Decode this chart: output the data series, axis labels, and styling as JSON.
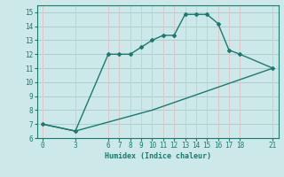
{
  "line1_x": [
    0,
    3,
    6,
    7,
    8,
    9,
    10,
    11,
    12,
    13,
    14,
    15,
    16,
    17,
    18,
    21
  ],
  "line1_y": [
    7.0,
    6.5,
    12.0,
    12.0,
    12.0,
    12.5,
    13.0,
    13.35,
    13.35,
    14.85,
    14.85,
    14.85,
    14.2,
    12.3,
    12.0,
    11.0
  ],
  "line2_x": [
    0,
    3,
    10,
    21
  ],
  "line2_y": [
    7.0,
    6.5,
    8.0,
    11.0
  ],
  "color": "#1a7a6e",
  "bg_color": "#cce8e8",
  "grid_major_color": "#aacece",
  "grid_minor_color": "#ddc8c8",
  "xlabel": "Humidex (Indice chaleur)",
  "xticks": [
    0,
    3,
    6,
    7,
    8,
    9,
    10,
    11,
    12,
    13,
    14,
    15,
    16,
    17,
    18,
    21
  ],
  "yticks": [
    6,
    7,
    8,
    9,
    10,
    11,
    12,
    13,
    14,
    15
  ],
  "xlim": [
    -0.5,
    21.5
  ],
  "ylim": [
    6,
    15.5
  ]
}
